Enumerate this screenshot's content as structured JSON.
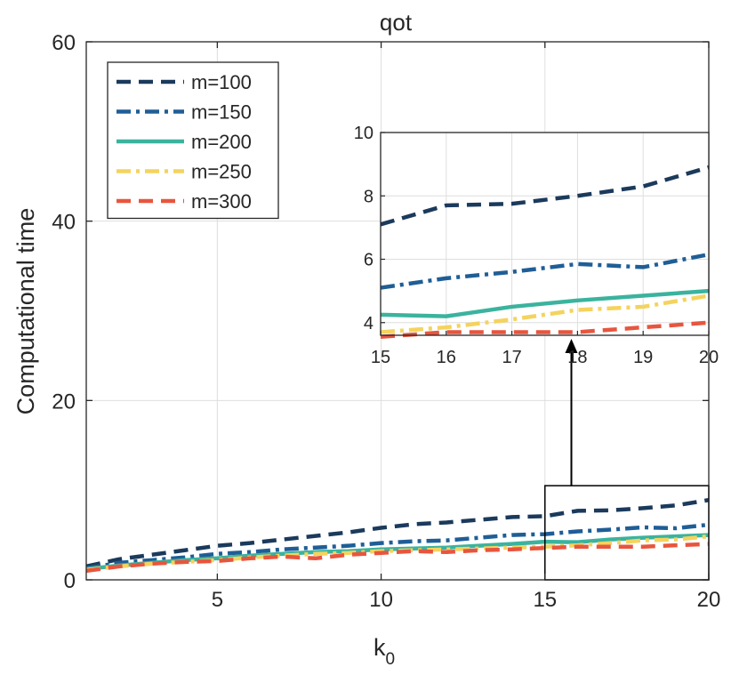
{
  "chart_data": {
    "type": "line",
    "title": "qot",
    "xlabel": "k",
    "xlabel_subscript": "0",
    "ylabel": "Computational time",
    "xlim": [
      1,
      20
    ],
    "ylim": [
      0,
      60
    ],
    "xticks": [
      5,
      10,
      15,
      20
    ],
    "yticks": [
      0,
      20,
      40,
      60
    ],
    "grid": true,
    "legend_position": "top-left",
    "x": [
      1,
      2,
      3,
      4,
      5,
      6,
      7,
      8,
      9,
      10,
      11,
      12,
      13,
      14,
      15,
      16,
      17,
      18,
      19,
      20
    ],
    "series": [
      {
        "name": "m=100",
        "color": "#1b3a5c",
        "dash": "dashed",
        "values": [
          1.5,
          2.3,
          2.8,
          3.3,
          3.8,
          4.1,
          4.5,
          4.9,
          5.3,
          5.8,
          6.2,
          6.4,
          6.7,
          7.0,
          7.1,
          7.7,
          7.75,
          8.0,
          8.3,
          8.9
        ]
      },
      {
        "name": "m=150",
        "color": "#1f5e96",
        "dash": "dashdot",
        "values": [
          1.3,
          1.9,
          2.2,
          2.5,
          2.9,
          3.1,
          3.4,
          3.6,
          3.8,
          4.1,
          4.3,
          4.4,
          4.7,
          5.0,
          5.1,
          5.4,
          5.6,
          5.85,
          5.75,
          6.15
        ]
      },
      {
        "name": "m=200",
        "color": "#3bb39e",
        "dash": "solid",
        "values": [
          1.2,
          1.6,
          1.9,
          2.2,
          2.4,
          2.7,
          2.9,
          3.1,
          3.2,
          3.4,
          3.5,
          3.6,
          3.8,
          4.0,
          4.25,
          4.2,
          4.5,
          4.7,
          4.85,
          5.0
        ]
      },
      {
        "name": "m=250",
        "color": "#f4d35e",
        "dash": "dashdot",
        "values": [
          1.1,
          1.5,
          1.8,
          2.0,
          2.2,
          2.5,
          2.7,
          2.9,
          3.0,
          3.2,
          3.3,
          3.4,
          3.5,
          3.6,
          3.7,
          3.85,
          4.1,
          4.4,
          4.5,
          4.85
        ]
      },
      {
        "name": "m=300",
        "color": "#e8553e",
        "dash": "dashed",
        "values": [
          1.0,
          1.5,
          1.8,
          2.0,
          2.1,
          2.4,
          2.6,
          2.4,
          2.8,
          3.0,
          3.2,
          3.1,
          3.3,
          3.4,
          3.55,
          3.7,
          3.7,
          3.7,
          3.85,
          4.0
        ]
      }
    ],
    "inset": {
      "xlim": [
        15,
        20
      ],
      "ylim": [
        3.6,
        10
      ],
      "xticks": [
        15,
        16,
        17,
        18,
        19,
        20
      ],
      "yticks": [
        4,
        6,
        8,
        10
      ],
      "zoom_box": {
        "xlim": [
          15,
          20
        ],
        "ylim": [
          0,
          10.5
        ]
      }
    }
  }
}
